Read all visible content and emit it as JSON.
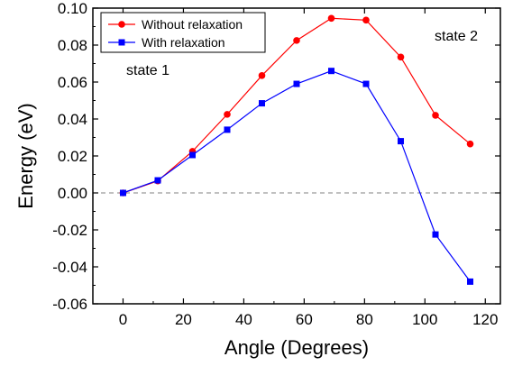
{
  "chart_data": {
    "type": "line",
    "xlabel": "Angle (Degrees)",
    "ylabel": "Energy (eV)",
    "xlim": [
      -10,
      125
    ],
    "ylim": [
      -0.06,
      0.1
    ],
    "x_ticks": [
      0,
      20,
      40,
      60,
      80,
      100,
      120
    ],
    "x_tick_labels": [
      "0",
      "20",
      "40",
      "60",
      "80",
      "100",
      "120"
    ],
    "y_ticks": [
      -0.06,
      -0.04,
      -0.02,
      0.0,
      0.02,
      0.04,
      0.06,
      0.08,
      0.1
    ],
    "y_tick_labels": [
      "-0.06",
      "-0.04",
      "-0.02",
      "0.00",
      "0.02",
      "0.04",
      "0.06",
      "0.08",
      "0.10"
    ],
    "grid": false,
    "legend_position": "top-left",
    "reference_line": {
      "y": 0.0,
      "style": "dashed",
      "color": "#808080"
    },
    "annotations": [
      {
        "text": "state 1",
        "position": "upper-left"
      },
      {
        "text": "state 2",
        "position": "upper-right"
      }
    ],
    "series": [
      {
        "name": "Without relaxation",
        "color": "#ff0000",
        "marker": "circle",
        "x": [
          0,
          11.5,
          23,
          34.5,
          46,
          57.5,
          69,
          80.5,
          92,
          103.5,
          115
        ],
        "y": [
          0.0,
          0.0065,
          0.0225,
          0.0425,
          0.0635,
          0.0825,
          0.0945,
          0.0935,
          0.0735,
          0.042,
          0.0265
        ]
      },
      {
        "name": "With relaxation",
        "color": "#0000ff",
        "marker": "square",
        "x": [
          0,
          11.5,
          23,
          34.5,
          46,
          57.5,
          69,
          80.5,
          92,
          103.5,
          115
        ],
        "y": [
          0.0,
          0.0068,
          0.0205,
          0.0342,
          0.0485,
          0.059,
          0.066,
          0.059,
          0.028,
          -0.0225,
          -0.048
        ]
      }
    ]
  }
}
